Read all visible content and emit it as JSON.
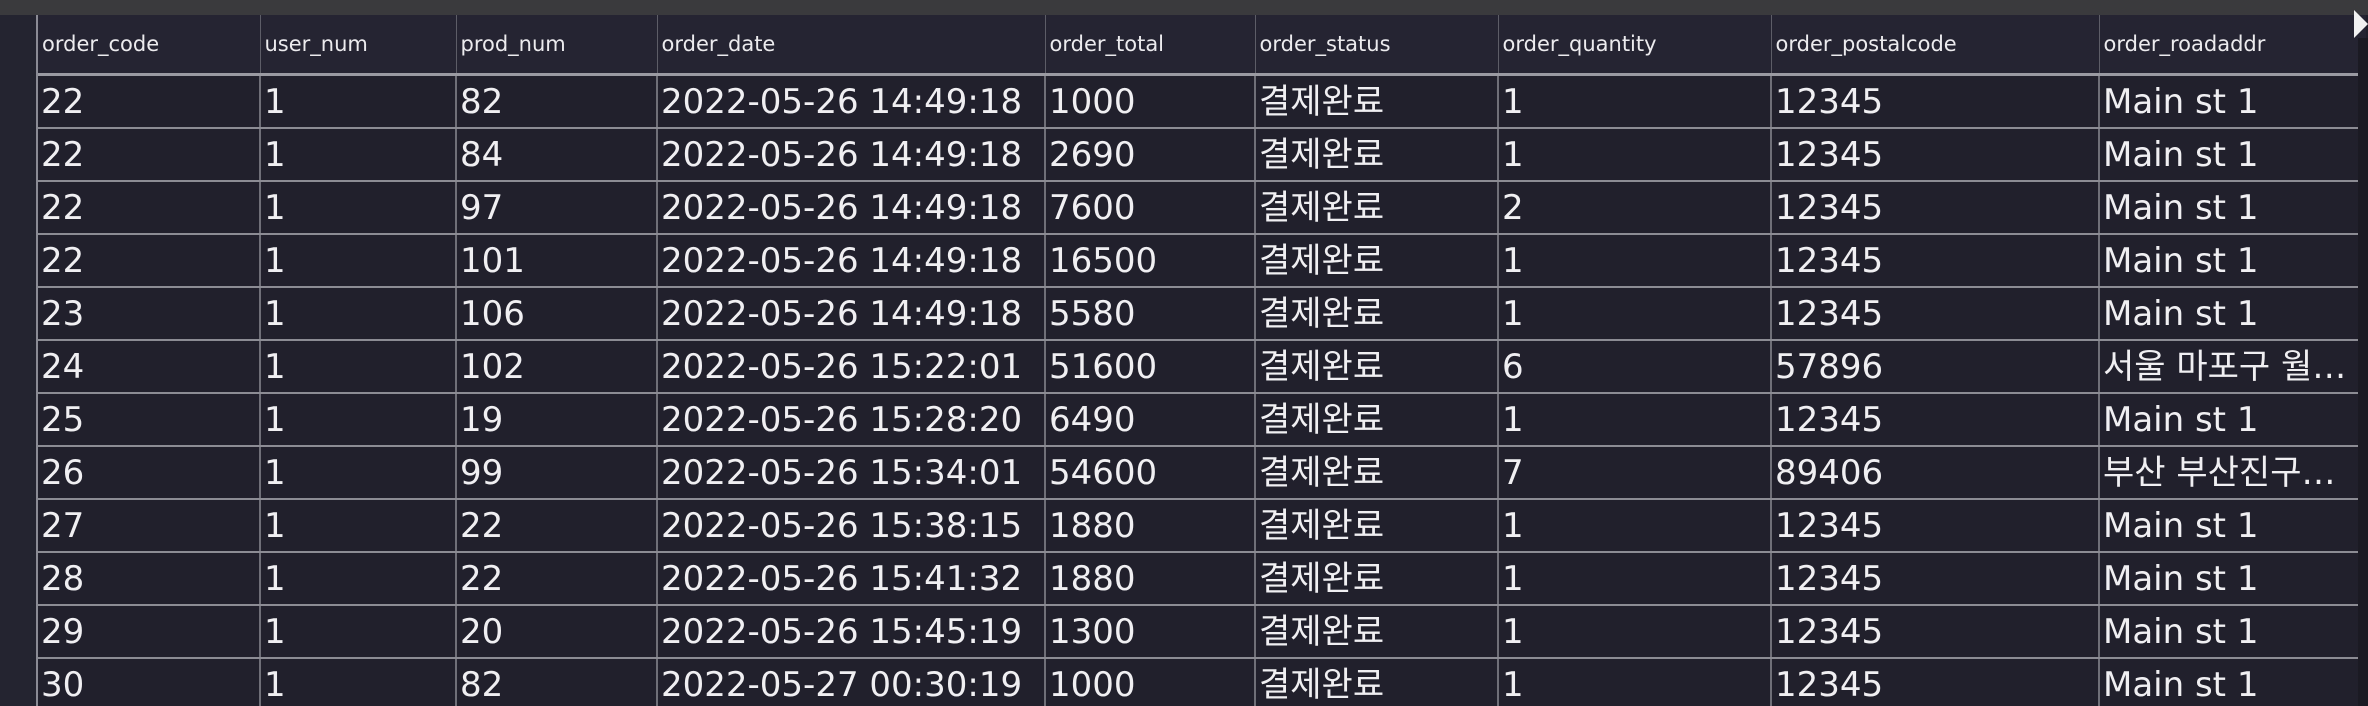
{
  "table": {
    "headers": [
      "order_code",
      "user_num",
      "prod_num",
      "order_date",
      "order_total",
      "order_status",
      "order_quantity",
      "order_postalcode",
      "order_roadaddr"
    ],
    "rows": [
      [
        "22",
        "1",
        "82",
        "2022-05-26 14:49:18",
        "1000",
        "결제완료",
        "1",
        "12345",
        "Main st 1"
      ],
      [
        "22",
        "1",
        "84",
        "2022-05-26 14:49:18",
        "2690",
        "결제완료",
        "1",
        "12345",
        "Main st 1"
      ],
      [
        "22",
        "1",
        "97",
        "2022-05-26 14:49:18",
        "7600",
        "결제완료",
        "2",
        "12345",
        "Main st 1"
      ],
      [
        "22",
        "1",
        "101",
        "2022-05-26 14:49:18",
        "16500",
        "결제완료",
        "1",
        "12345",
        "Main st 1"
      ],
      [
        "23",
        "1",
        "106",
        "2022-05-26 14:49:18",
        "5580",
        "결제완료",
        "1",
        "12345",
        "Main st 1"
      ],
      [
        "24",
        "1",
        "102",
        "2022-05-26 15:22:01",
        "51600",
        "결제완료",
        "6",
        "57896",
        "서울 마포구 월…"
      ],
      [
        "25",
        "1",
        "19",
        "2022-05-26 15:28:20",
        "6490",
        "결제완료",
        "1",
        "12345",
        "Main st 1"
      ],
      [
        "26",
        "1",
        "99",
        "2022-05-26 15:34:01",
        "54600",
        "결제완료",
        "7",
        "89406",
        "부산 부산진구…"
      ],
      [
        "27",
        "1",
        "22",
        "2022-05-26 15:38:15",
        "1880",
        "결제완료",
        "1",
        "12345",
        "Main st 1"
      ],
      [
        "28",
        "1",
        "22",
        "2022-05-26 15:41:32",
        "1880",
        "결제완료",
        "1",
        "12345",
        "Main st 1"
      ],
      [
        "29",
        "1",
        "20",
        "2022-05-26 15:45:19",
        "1300",
        "결제완료",
        "1",
        "12345",
        "Main st 1"
      ],
      [
        "30",
        "1",
        "82",
        "2022-05-27 00:30:19",
        "1000",
        "결제완료",
        "1",
        "12345",
        "Main st 1"
      ]
    ]
  },
  "icons": {
    "scroll_right": "chevron-right-icon"
  }
}
